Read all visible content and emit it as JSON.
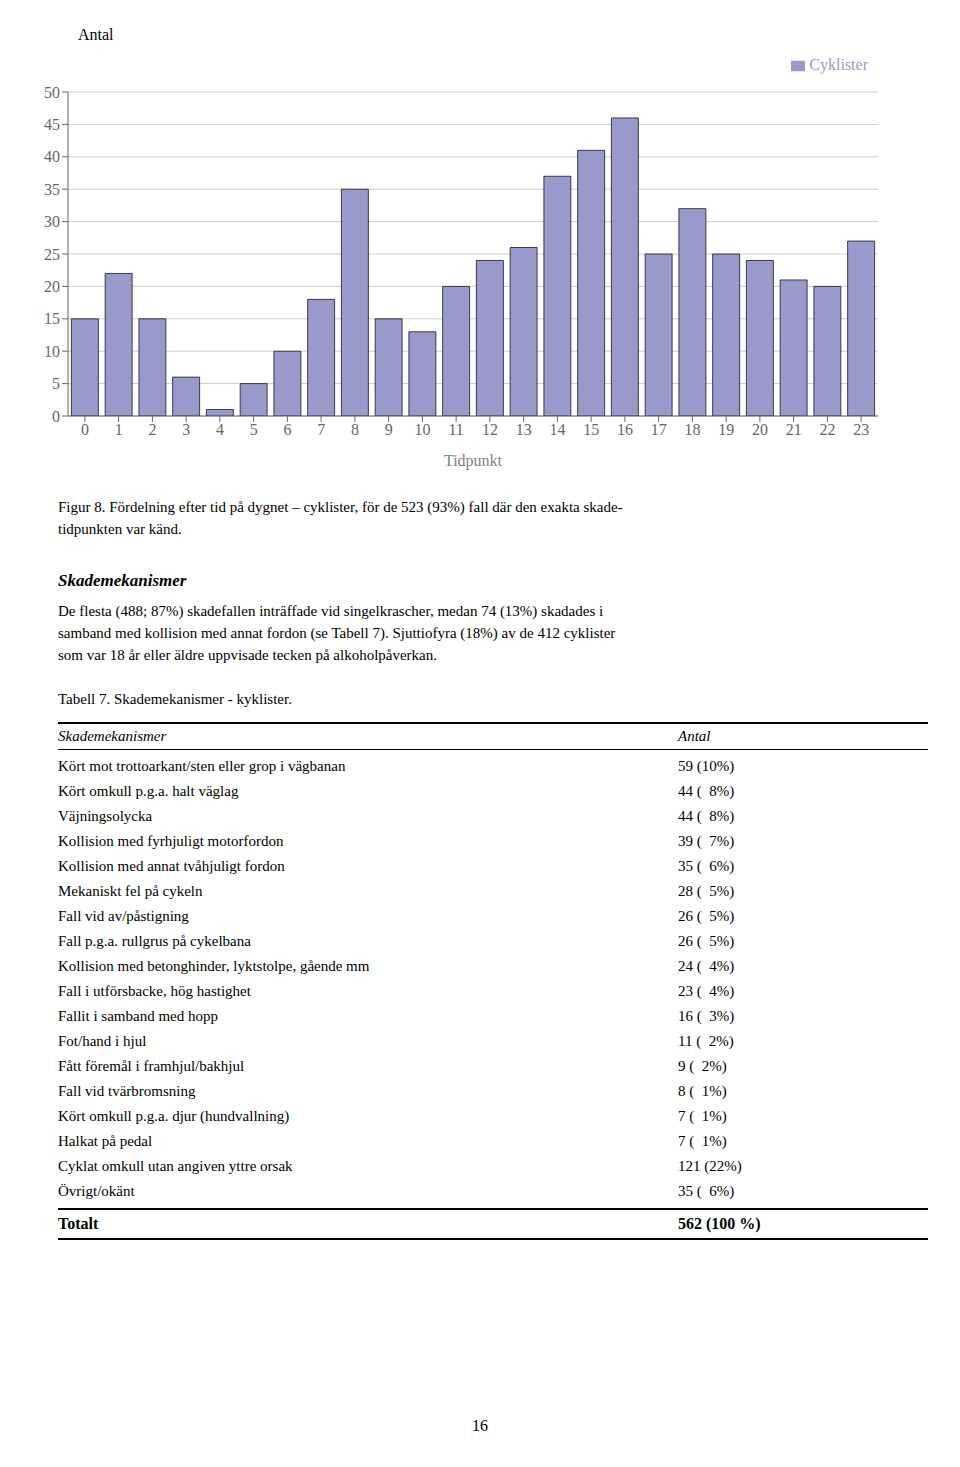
{
  "chart_data": {
    "type": "bar",
    "xlabel": "Tidpunkt",
    "ylabel": "Antal",
    "categories": [
      "0",
      "1",
      "2",
      "3",
      "4",
      "5",
      "6",
      "7",
      "8",
      "9",
      "10",
      "11",
      "12",
      "13",
      "14",
      "15",
      "16",
      "17",
      "18",
      "19",
      "20",
      "21",
      "22",
      "23"
    ],
    "series": [
      {
        "name": "Cyklister",
        "color": "#9999CC",
        "values": [
          15,
          22,
          15,
          6,
          1,
          5,
          10,
          18,
          35,
          15,
          13,
          20,
          24,
          26,
          37,
          41,
          46,
          25,
          32,
          25,
          24,
          21,
          20,
          27
        ]
      }
    ],
    "ylim": [
      0,
      50
    ],
    "yticks": [
      0,
      5,
      10,
      15,
      20,
      25,
      30,
      35,
      40,
      45,
      50
    ],
    "grid": true,
    "legend": "upper right",
    "annotations": [
      "Figur 8. Fördelning efter tid på dygnet – cyklister, för de 523 (93%) fall där den exakta skade-",
      "tidpunkten var känd.",
      "Skademekanismer",
      "De flesta (488; 87%) skadefallen inträffade vid singelkrascher, medan 74 (13%) skadades i",
      "samband med kollision med annat fordon (se Tabell 7). Sjuttiofyra (18%) av de 412 cyklister",
      "som var 18 år eller äldre uppvisade tecken på alkoholpåverkan.",
      "Tabell 7. Skademekanismer - kyklister.",
      "16"
    ],
    "table": {
      "header": [
        "Skademekanismer",
        "Antal"
      ],
      "rows": [
        [
          "Kört mot trottoarkant/sten eller grop i vägbanan",
          "59 (10%)"
        ],
        [
          "Kört omkull p.g.a. halt väglag",
          "44 (  8%)"
        ],
        [
          "Väjningsolycka",
          "44 (  8%)"
        ],
        [
          "Kollision med fyrhjuligt motorfordon",
          "39 (  7%)"
        ],
        [
          "Kollision med annat tvåhjuligt fordon",
          "35 (  6%)"
        ],
        [
          "Mekaniskt fel på cykeln",
          "28 (  5%)"
        ],
        [
          "Fall vid av/påstigning",
          "26 (  5%)"
        ],
        [
          "Fall p.g.a. rullgrus på cykelbana",
          "26 (  5%)"
        ],
        [
          "Kollision med betonghinder, lyktstolpe, gående mm",
          "24 (  4%)"
        ],
        [
          "Fall i utförsbacke, hög hastighet",
          "23 (  4%)"
        ],
        [
          "Fallit i samband med hopp",
          "16 (  3%)"
        ],
        [
          "Fot/hand i hjul",
          "11 (  2%)"
        ],
        [
          "Fått föremål i framhjul/bakhjul",
          "9 (  2%)"
        ],
        [
          "Fall vid tvärbromsning",
          "8 (  1%)"
        ],
        [
          "Kört omkull p.g.a. djur (hundvallning)",
          "7 (  1%)"
        ],
        [
          "Halkat på pedal",
          "7 (  1%)"
        ],
        [
          "Cyklat omkull utan angiven yttre orsak",
          "121 (22%)"
        ],
        [
          "Övrigt/okänt",
          "35 (  6%)"
        ]
      ],
      "total": [
        "Totalt",
        "562 (100 %)"
      ]
    }
  }
}
